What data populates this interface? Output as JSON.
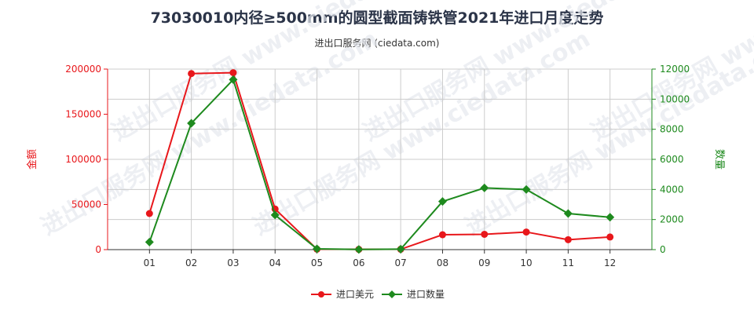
{
  "title": "73030010内径≥500mm的圆型截面铸铁管2021年进口月度走势",
  "subtitle": "进出口服务网 (ciedata.com)",
  "watermark": "进出口服务网 www.ciedata.com",
  "colors": {
    "left_axis": "#e8171b",
    "right_axis": "#1e8a1e",
    "grid": "#cccccc"
  },
  "chart_data": {
    "type": "line",
    "categories": [
      "01",
      "02",
      "03",
      "04",
      "05",
      "06",
      "07",
      "08",
      "09",
      "10",
      "11",
      "12"
    ],
    "left_axis": {
      "label": "金额",
      "ylim": [
        0,
        200000
      ],
      "ticks": [
        "0",
        "50000",
        "100000",
        "150000",
        "200000"
      ]
    },
    "right_axis": {
      "label": "数量",
      "ylim": [
        0,
        12000
      ],
      "ticks": [
        "0",
        "2000",
        "4000",
        "6000",
        "8000",
        "10000",
        "12000"
      ]
    },
    "series": [
      {
        "name": "进口美元",
        "axis": "left",
        "color": "#e8171b",
        "marker": "circle",
        "values": [
          40000,
          195000,
          196000,
          45000,
          500,
          300,
          400,
          16500,
          17000,
          19500,
          11000,
          14000
        ]
      },
      {
        "name": "进口数量",
        "axis": "right",
        "color": "#1e8a1e",
        "marker": "diamond",
        "values": [
          500,
          8400,
          11300,
          2300,
          50,
          10,
          30,
          3200,
          4100,
          4000,
          2400,
          2150
        ]
      }
    ],
    "legend_position": "bottom-center",
    "grid": true
  }
}
